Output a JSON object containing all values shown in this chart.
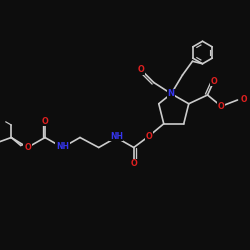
{
  "bg_color": "#0d0d0d",
  "bond_color": "#cccccc",
  "atom_colors": {
    "O": "#e02020",
    "N": "#3535ee",
    "C": "#cccccc"
  },
  "bond_width": 1.2,
  "figsize": [
    2.5,
    2.5
  ],
  "dpi": 100,
  "xlim": [
    0,
    10
  ],
  "ylim": [
    0,
    10
  ]
}
